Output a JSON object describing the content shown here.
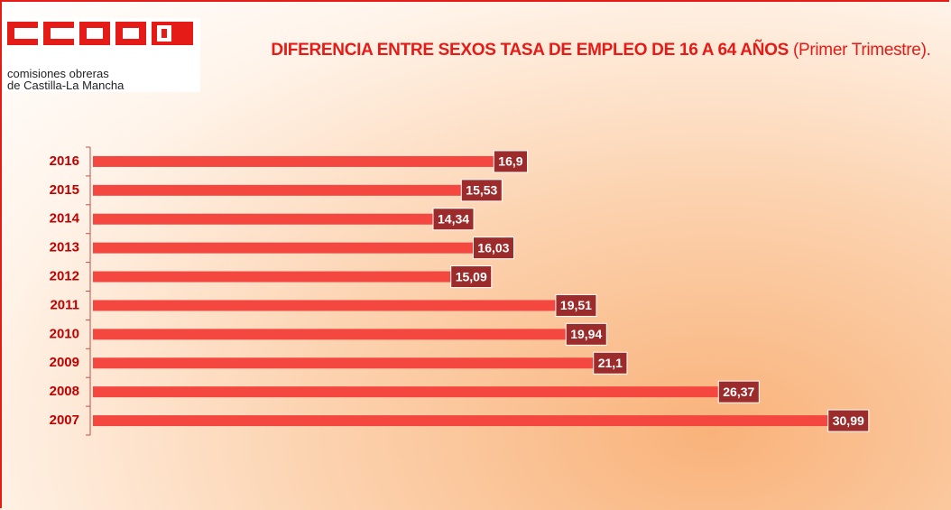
{
  "logo": {
    "line1": "comisiones obreras",
    "line2": "de Castilla-La Mancha"
  },
  "chart_data": {
    "type": "barh",
    "title": "DIFERENCIA ENTRE SEXOS TASA DE EMPLEO DE 16 A 64 AÑOS",
    "subtitle": "(Primer Trimestre).",
    "categories": [
      "2016",
      "2015",
      "2014",
      "2013",
      "2012",
      "2011",
      "2010",
      "2009",
      "2008",
      "2007"
    ],
    "values": [
      16.9,
      15.53,
      14.34,
      16.03,
      15.09,
      19.51,
      19.94,
      21.1,
      26.37,
      30.99
    ],
    "value_labels": [
      "16,9",
      "15,53",
      "14,34",
      "16,03",
      "15,09",
      "19,51",
      "19,94",
      "21,1",
      "26,37",
      "30,99"
    ],
    "color": "#f4473f",
    "xlim": [
      0,
      31
    ]
  }
}
